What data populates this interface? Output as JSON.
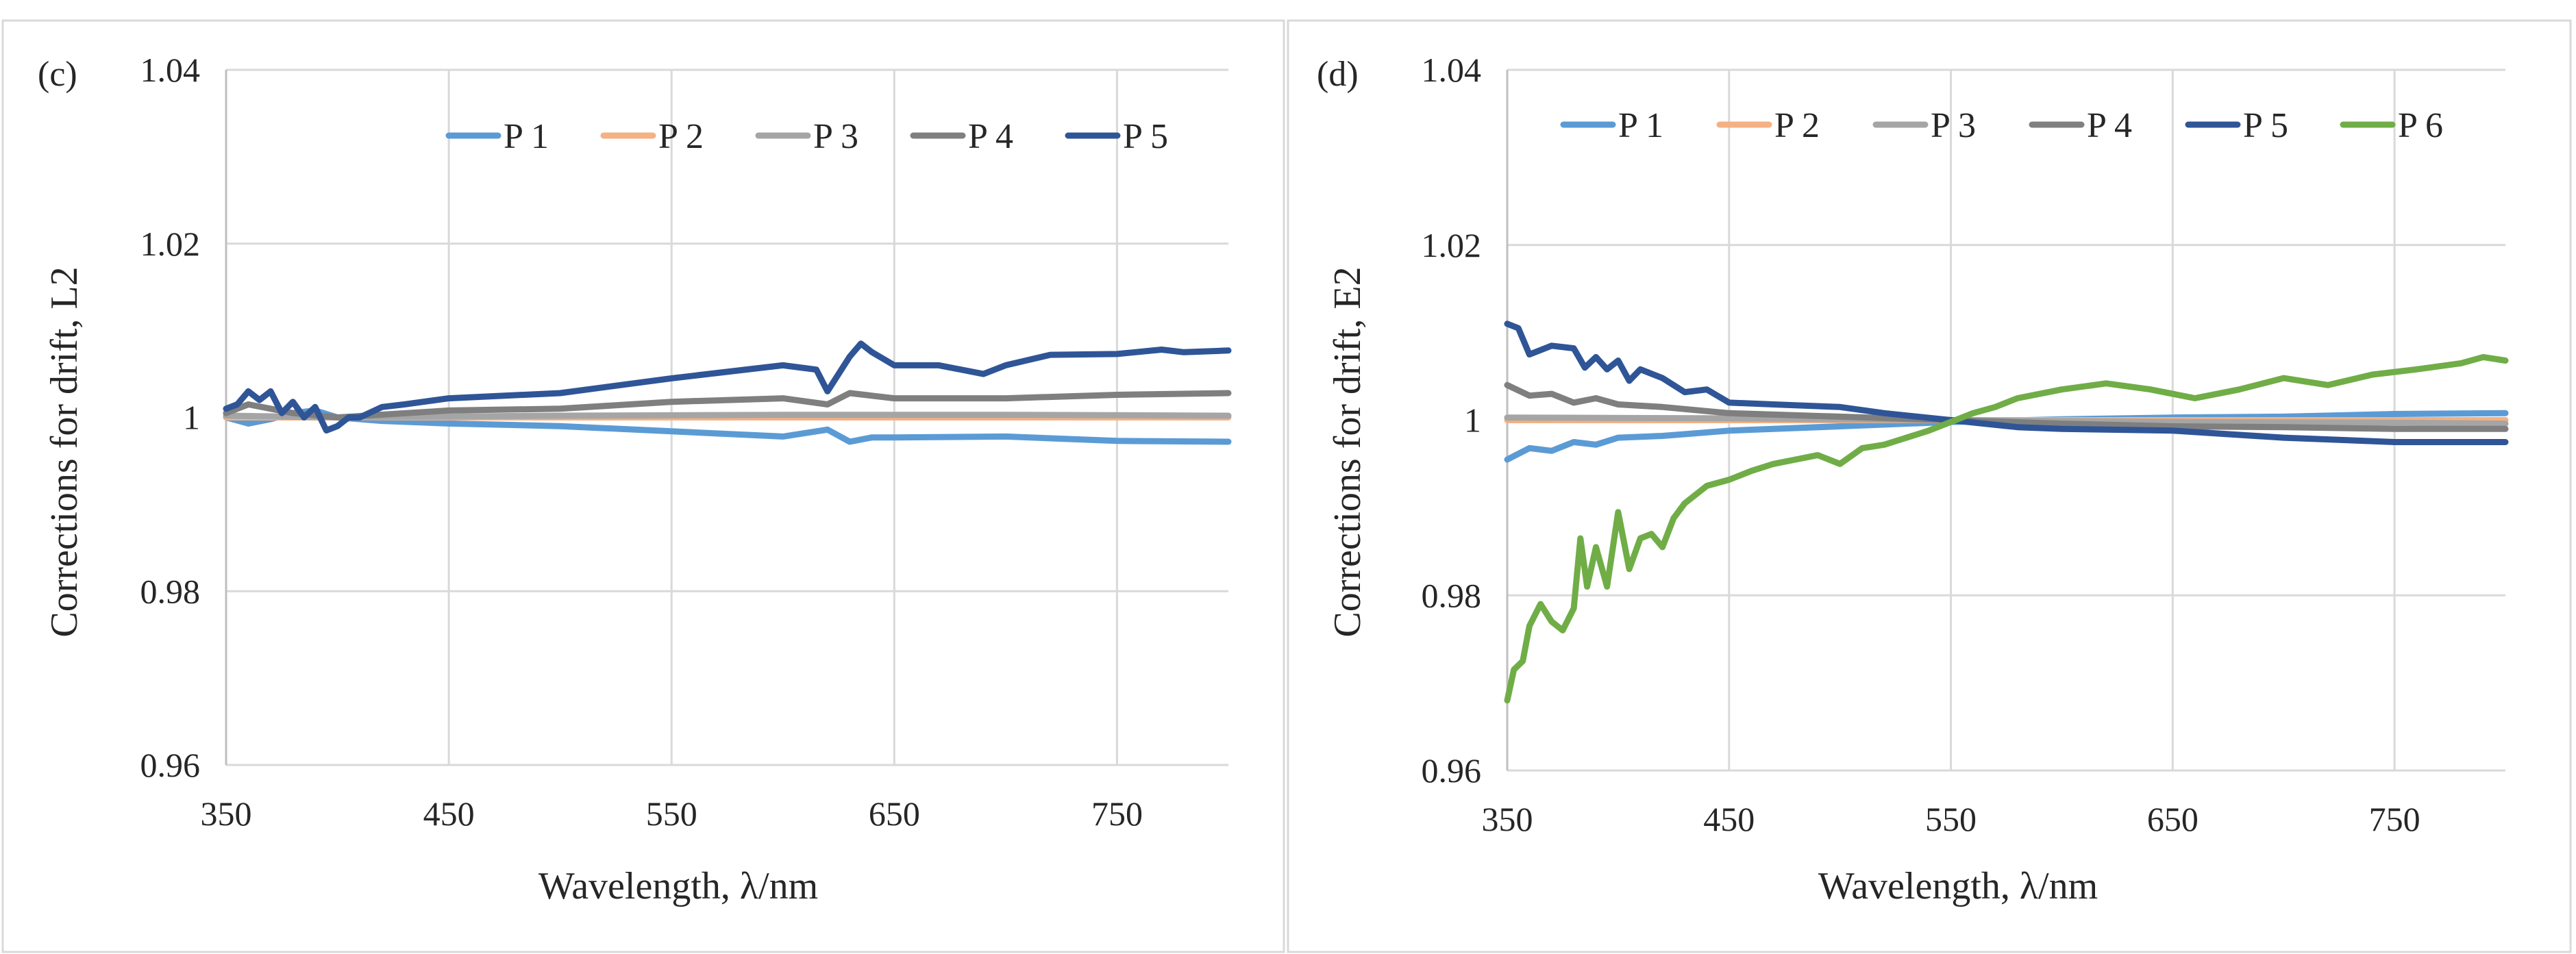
{
  "chart_data": [
    {
      "type": "line",
      "panel_label": "(c)",
      "xlabel": "Wavelength, λ/nm",
      "ylabel": "Corrections for drift, L2",
      "xlim": [
        350,
        800
      ],
      "ylim": [
        0.96,
        1.04
      ],
      "xticks": [
        350,
        450,
        550,
        650,
        750
      ],
      "yticks": [
        0.96,
        0.98,
        1,
        1.02,
        1.04
      ],
      "ytick_labels": [
        "0.96",
        "0.98",
        "1",
        "1.02",
        "1.04"
      ],
      "grid": true,
      "legend": "top",
      "series": [
        {
          "name": "P 1",
          "color": "#5b9bd5",
          "x": [
            350,
            360,
            370,
            380,
            390,
            400,
            420,
            450,
            500,
            550,
            600,
            620,
            630,
            640,
            650,
            700,
            750,
            800
          ],
          "y": [
            1.0,
            0.9993,
            0.9998,
            1.0005,
            1.0008,
            1.0,
            0.9996,
            0.9993,
            0.999,
            0.9984,
            0.9978,
            0.9986,
            0.9972,
            0.9977,
            0.9977,
            0.9978,
            0.9973,
            0.9972
          ]
        },
        {
          "name": "P 2",
          "color": "#f4b183",
          "x": [
            350,
            800
          ],
          "y": [
            1.0,
            1.0
          ]
        },
        {
          "name": "P 3",
          "color": "#a5a5a5",
          "x": [
            350,
            400,
            500,
            600,
            700,
            800
          ],
          "y": [
            1.0002,
            1.0,
            1.0002,
            1.0003,
            1.0003,
            1.0002
          ]
        },
        {
          "name": "P 4",
          "color": "#7f7f7f",
          "x": [
            350,
            360,
            370,
            380,
            400,
            450,
            500,
            550,
            600,
            620,
            630,
            650,
            700,
            750,
            800
          ],
          "y": [
            1.0005,
            1.0015,
            1.001,
            1.0005,
            1.0,
            1.0008,
            1.001,
            1.0018,
            1.0022,
            1.0015,
            1.0028,
            1.0022,
            1.0022,
            1.0026,
            1.0028
          ]
        },
        {
          "name": "P 5",
          "color": "#2f5597",
          "x": [
            350,
            355,
            360,
            365,
            370,
            375,
            380,
            385,
            390,
            395,
            400,
            405,
            410,
            420,
            430,
            450,
            500,
            550,
            600,
            615,
            620,
            630,
            635,
            640,
            650,
            670,
            690,
            700,
            720,
            750,
            770,
            780,
            800
          ],
          "y": [
            1.001,
            1.0015,
            1.003,
            1.002,
            1.003,
            1.0005,
            1.0018,
            1.0,
            1.0012,
            0.9985,
            0.999,
            1.0,
            1.0,
            1.0012,
            1.0015,
            1.0022,
            1.0028,
            1.0045,
            1.006,
            1.0055,
            1.003,
            1.007,
            1.0085,
            1.0075,
            1.006,
            1.006,
            1.005,
            1.006,
            1.0072,
            1.0073,
            1.0078,
            1.0075,
            1.0077
          ]
        }
      ]
    },
    {
      "type": "line",
      "panel_label": "(d)",
      "xlabel": "Wavelength, λ/nm",
      "ylabel": "Corrections for drift, E2",
      "xlim": [
        350,
        800
      ],
      "ylim": [
        0.96,
        1.04
      ],
      "xticks": [
        350,
        450,
        550,
        650,
        750
      ],
      "yticks": [
        0.96,
        0.98,
        1,
        1.02,
        1.04
      ],
      "ytick_labels": [
        "0.96",
        "0.98",
        "1",
        "1.02",
        "1.04"
      ],
      "grid": true,
      "legend": "top",
      "series": [
        {
          "name": "P 1",
          "color": "#5b9bd5",
          "x": [
            350,
            360,
            370,
            380,
            390,
            400,
            420,
            450,
            500,
            550,
            600,
            650,
            700,
            750,
            800
          ],
          "y": [
            0.9955,
            0.9968,
            0.9965,
            0.9975,
            0.9972,
            0.998,
            0.9982,
            0.9988,
            0.9993,
            0.9998,
            1.0001,
            1.0003,
            1.0004,
            1.0007,
            1.0008
          ]
        },
        {
          "name": "P 2",
          "color": "#f4b183",
          "x": [
            350,
            800
          ],
          "y": [
            1.0,
            1.0
          ]
        },
        {
          "name": "P 3",
          "color": "#a5a5a5",
          "x": [
            350,
            450,
            550,
            650,
            750,
            800
          ],
          "y": [
            1.0003,
            1.0002,
            1.0,
            0.9998,
            0.9997,
            0.9996
          ]
        },
        {
          "name": "P 4",
          "color": "#7f7f7f",
          "x": [
            350,
            360,
            370,
            380,
            390,
            400,
            420,
            450,
            500,
            550,
            600,
            650,
            700,
            750,
            800
          ],
          "y": [
            1.004,
            1.0028,
            1.003,
            1.002,
            1.0025,
            1.0018,
            1.0015,
            1.0008,
            1.0004,
            1.0,
            0.9996,
            0.9993,
            0.9992,
            0.999,
            0.999
          ]
        },
        {
          "name": "P 5",
          "color": "#2f5597",
          "x": [
            350,
            355,
            360,
            370,
            380,
            385,
            390,
            395,
            400,
            405,
            410,
            420,
            430,
            440,
            450,
            470,
            500,
            520,
            550,
            580,
            600,
            650,
            700,
            750,
            800
          ],
          "y": [
            1.011,
            1.0105,
            1.0075,
            1.0085,
            1.0082,
            1.006,
            1.0072,
            1.0058,
            1.0068,
            1.0045,
            1.0058,
            1.0048,
            1.0032,
            1.0035,
            1.002,
            1.0018,
            1.0015,
            1.0008,
            1.0,
            0.9992,
            0.999,
            0.9988,
            0.998,
            0.9975,
            0.9975
          ]
        },
        {
          "name": "P 6",
          "color": "#70ad47",
          "x": [
            350,
            353,
            357,
            360,
            365,
            370,
            375,
            380,
            383,
            386,
            390,
            395,
            400,
            405,
            410,
            415,
            420,
            425,
            430,
            440,
            450,
            460,
            470,
            480,
            490,
            500,
            510,
            520,
            530,
            540,
            550,
            560,
            570,
            580,
            600,
            620,
            640,
            660,
            680,
            700,
            720,
            740,
            760,
            780,
            790,
            800
          ],
          "y": [
            0.968,
            0.9715,
            0.9725,
            0.9765,
            0.979,
            0.977,
            0.976,
            0.9785,
            0.9865,
            0.981,
            0.9855,
            0.981,
            0.9895,
            0.983,
            0.9865,
            0.987,
            0.9855,
            0.9888,
            0.9905,
            0.9925,
            0.9932,
            0.9942,
            0.995,
            0.9955,
            0.996,
            0.995,
            0.9968,
            0.9972,
            0.998,
            0.9988,
            0.9998,
            1.0008,
            1.0015,
            1.0025,
            1.0035,
            1.0042,
            1.0035,
            1.0025,
            1.0035,
            1.0048,
            1.004,
            1.0052,
            1.0058,
            1.0065,
            1.0072,
            1.0068
          ]
        }
      ]
    }
  ]
}
